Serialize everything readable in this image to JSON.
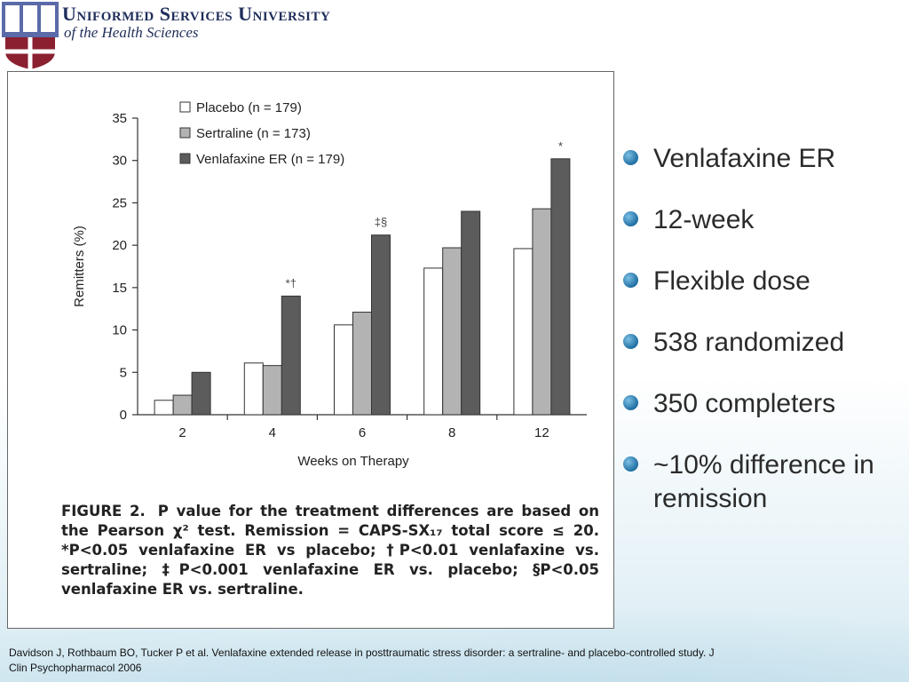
{
  "header": {
    "logo_letters": "USU",
    "title": "Uniformed Services University",
    "subtitle": "of the Health Sciences"
  },
  "chart_data": {
    "type": "bar",
    "categories": [
      "2",
      "4",
      "6",
      "8",
      "12"
    ],
    "series": [
      {
        "name": "Placebo (n = 179)",
        "color": "#ffffff",
        "values": [
          1.7,
          6.1,
          10.6,
          17.3,
          19.6
        ]
      },
      {
        "name": "Sertraline (n = 173)",
        "color": "#b3b3b3",
        "values": [
          2.3,
          5.8,
          12.1,
          19.7,
          24.3
        ]
      },
      {
        "name": "Venlafaxine ER (n = 179)",
        "color": "#5c5c5c",
        "values": [
          5.0,
          14.0,
          21.2,
          24.0,
          30.2
        ]
      }
    ],
    "annotations": [
      {
        "category": "4",
        "text": "*†"
      },
      {
        "category": "6",
        "text": "‡§"
      },
      {
        "category": "12",
        "text": "*"
      }
    ],
    "xlabel": "Weeks on Therapy",
    "ylabel": "Remitters (%)",
    "ylim": [
      0,
      35
    ],
    "yticks": [
      0,
      5,
      10,
      15,
      20,
      25,
      30,
      35
    ],
    "legend_position": "top-left",
    "grid": false
  },
  "caption": {
    "label": "FIGURE 2.",
    "text": "P value for the treatment differences are based on the Pearson χ² test. Remission = CAPS-SX₁₇ total score ≤ 20. *P<0.05 venlafaxine ER vs placebo; †P<0.01 venlafaxine vs. sertraline; ‡P<0.001 venlafaxine ER vs. placebo; §P<0.05 venlafaxine ER vs. sertraline."
  },
  "bullets": [
    "Venlafaxine ER",
    "12-week",
    "Flexible dose",
    "538 randomized",
    "350 completers",
    "~10% difference in remission"
  ],
  "reference": "Davidson J, Rothbaum BO, Tucker P et al. Venlafaxine extended release in posttraumatic stress disorder: a sertraline- and placebo-controlled study.  J Clin Psychopharmacol 2006"
}
